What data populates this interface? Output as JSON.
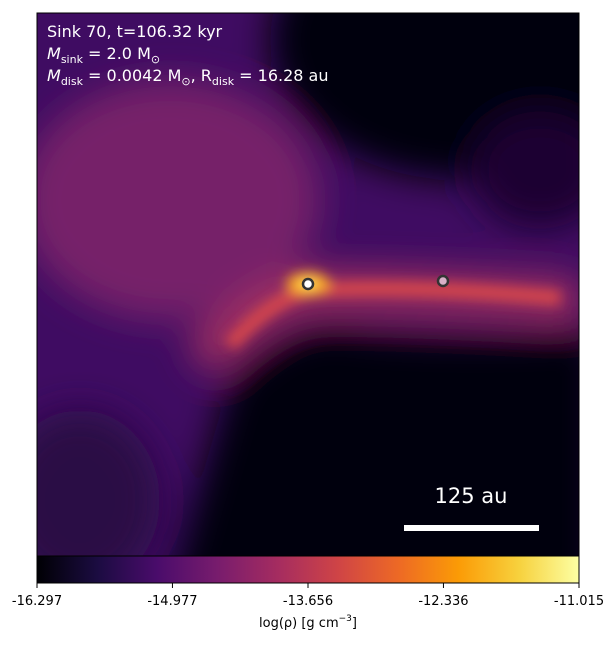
{
  "chart_data": {
    "type": "heatmap",
    "annotations": [
      {
        "parts": [
          "Sink 70, t=106.32 kyr"
        ]
      },
      {
        "parts": [
          "M",
          "sink",
          " = 2.0 M",
          "⊙"
        ]
      },
      {
        "parts": [
          "M",
          "disk",
          " = 0.0042 M",
          "⊙",
          ", R",
          "disk",
          " = 16.28 au"
        ]
      }
    ],
    "scale_bar": "125 au",
    "colormap": "inferno",
    "clim": [
      -16.297,
      -11.015
    ],
    "cticks": [
      -16.297,
      -14.977,
      -13.656,
      -12.336,
      -11.015
    ],
    "colorbar_label": [
      "log(ρ) [g cm",
      "−3",
      "]"
    ]
  }
}
